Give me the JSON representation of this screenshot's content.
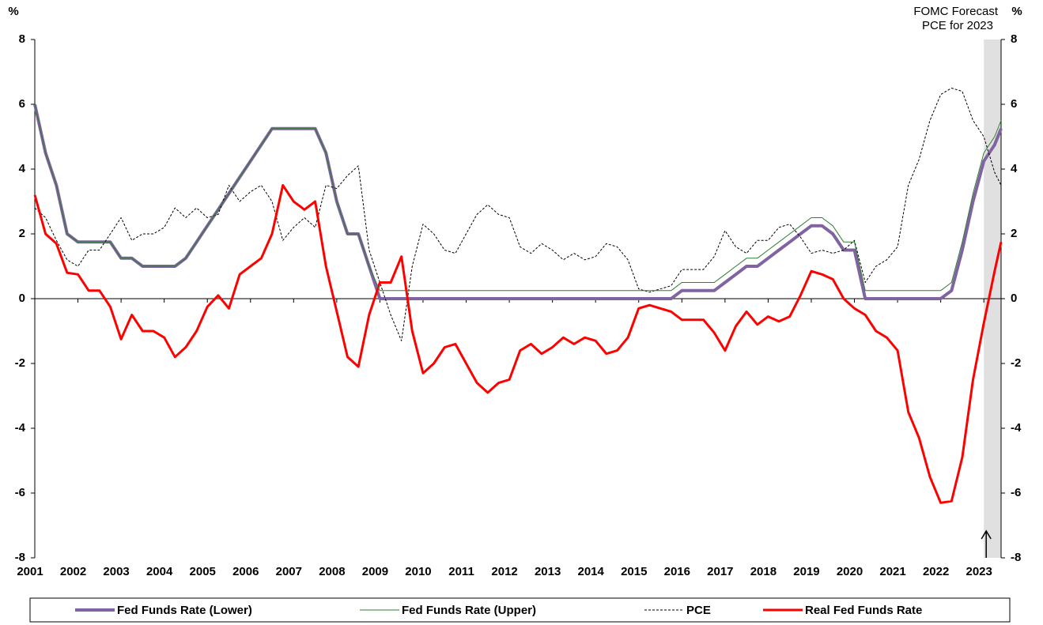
{
  "chart_data": {
    "type": "line",
    "y_label": "%",
    "y2_label": "%",
    "annotation": [
      "FOMC Forecast",
      "PCE for 2023"
    ],
    "forecast_region": [
      2023,
      2023.4
    ],
    "xlim": [
      2001,
      2023.4
    ],
    "xticks": [
      2001,
      2002,
      2003,
      2004,
      2005,
      2006,
      2007,
      2008,
      2009,
      2010,
      2011,
      2012,
      2013,
      2014,
      2015,
      2016,
      2017,
      2018,
      2019,
      2020,
      2021,
      2022,
      2023
    ],
    "ylim": [
      -8,
      8
    ],
    "yticks": [
      -8,
      -6,
      -4,
      -2,
      0,
      2,
      4,
      6,
      8
    ],
    "y2lim": [
      -8,
      8
    ],
    "y2ticks": [
      -8,
      -6,
      -4,
      -2,
      0,
      2,
      4,
      6,
      8
    ],
    "x": [
      2001,
      2001.25,
      2001.5,
      2001.75,
      2002,
      2002.25,
      2002.5,
      2002.75,
      2003,
      2003.25,
      2003.5,
      2003.75,
      2004,
      2004.25,
      2004.5,
      2004.75,
      2005,
      2005.25,
      2005.5,
      2005.75,
      2006,
      2006.25,
      2006.5,
      2006.75,
      2007,
      2007.25,
      2007.5,
      2007.75,
      2008,
      2008.25,
      2008.5,
      2008.75,
      2009,
      2009.25,
      2009.5,
      2009.75,
      2010,
      2010.25,
      2010.5,
      2010.75,
      2011,
      2011.25,
      2011.5,
      2011.75,
      2012,
      2012.25,
      2012.5,
      2012.75,
      2013,
      2013.25,
      2013.5,
      2013.75,
      2014,
      2014.25,
      2014.5,
      2014.75,
      2015,
      2015.25,
      2015.5,
      2015.75,
      2016,
      2016.25,
      2016.5,
      2016.75,
      2017,
      2017.25,
      2017.5,
      2017.75,
      2018,
      2018.25,
      2018.5,
      2018.75,
      2019,
      2019.25,
      2019.5,
      2019.75,
      2020,
      2020.25,
      2020.5,
      2020.75,
      2021,
      2021.25,
      2021.5,
      2021.75,
      2022,
      2022.25,
      2022.5,
      2022.75,
      2023,
      2023.25,
      2023.4
    ],
    "series": [
      {
        "name": "Fed Funds Rate (Lower)",
        "color": "#8064a2",
        "width": 4,
        "dashed": false,
        "values": [
          6.0,
          4.5,
          3.5,
          2.0,
          1.75,
          1.75,
          1.75,
          1.75,
          1.25,
          1.25,
          1.0,
          1.0,
          1.0,
          1.0,
          1.25,
          1.75,
          2.25,
          2.75,
          3.25,
          3.75,
          4.25,
          4.75,
          5.25,
          5.25,
          5.25,
          5.25,
          5.25,
          4.5,
          3.0,
          2.0,
          2.0,
          1.0,
          0,
          0,
          0,
          0,
          0,
          0,
          0,
          0,
          0,
          0,
          0,
          0,
          0,
          0,
          0,
          0,
          0,
          0,
          0,
          0,
          0,
          0,
          0,
          0,
          0,
          0,
          0,
          0,
          0.25,
          0.25,
          0.25,
          0.25,
          0.5,
          0.75,
          1.0,
          1.0,
          1.25,
          1.5,
          1.75,
          2.0,
          2.25,
          2.25,
          2.0,
          1.5,
          1.5,
          0,
          0,
          0,
          0,
          0,
          0,
          0,
          0,
          0.25,
          1.5,
          3.0,
          4.25,
          4.75,
          5.25
        ]
      },
      {
        "name": "Fed Funds Rate (Upper)",
        "color": "#2e7d32",
        "width": 1,
        "dashed": false,
        "values": [
          6.0,
          4.5,
          3.5,
          2.0,
          1.75,
          1.75,
          1.75,
          1.75,
          1.25,
          1.25,
          1.0,
          1.0,
          1.0,
          1.0,
          1.25,
          1.75,
          2.25,
          2.75,
          3.25,
          3.75,
          4.25,
          4.75,
          5.25,
          5.25,
          5.25,
          5.25,
          5.25,
          4.5,
          3.0,
          2.0,
          2.0,
          1.0,
          0.25,
          0.25,
          0.25,
          0.25,
          0.25,
          0.25,
          0.25,
          0.25,
          0.25,
          0.25,
          0.25,
          0.25,
          0.25,
          0.25,
          0.25,
          0.25,
          0.25,
          0.25,
          0.25,
          0.25,
          0.25,
          0.25,
          0.25,
          0.25,
          0.25,
          0.25,
          0.25,
          0.25,
          0.5,
          0.5,
          0.5,
          0.5,
          0.75,
          1.0,
          1.25,
          1.25,
          1.5,
          1.75,
          2.0,
          2.25,
          2.5,
          2.5,
          2.25,
          1.75,
          1.75,
          0.25,
          0.25,
          0.25,
          0.25,
          0.25,
          0.25,
          0.25,
          0.25,
          0.5,
          1.75,
          3.25,
          4.5,
          5.0,
          5.5
        ]
      },
      {
        "name": "PCE",
        "color": "#000000",
        "width": 1,
        "dashed": true,
        "values": [
          2.8,
          2.5,
          1.8,
          1.2,
          1.0,
          1.5,
          1.5,
          2.0,
          2.5,
          1.8,
          2.0,
          2.0,
          2.2,
          2.8,
          2.5,
          2.8,
          2.5,
          2.6,
          3.5,
          3.0,
          3.3,
          3.5,
          3.0,
          1.8,
          2.2,
          2.5,
          2.2,
          3.5,
          3.4,
          3.8,
          4.1,
          1.5,
          0.5,
          -0.5,
          -1.3,
          1.0,
          2.3,
          2.0,
          1.5,
          1.4,
          2.0,
          2.6,
          2.9,
          2.6,
          2.5,
          1.6,
          1.4,
          1.7,
          1.5,
          1.2,
          1.4,
          1.2,
          1.3,
          1.7,
          1.6,
          1.2,
          0.3,
          0.2,
          0.3,
          0.4,
          0.9,
          0.9,
          0.9,
          1.3,
          2.1,
          1.6,
          1.4,
          1.8,
          1.8,
          2.2,
          2.3,
          1.9,
          1.4,
          1.5,
          1.4,
          1.5,
          1.8,
          0.5,
          1.0,
          1.2,
          1.6,
          3.5,
          4.3,
          5.5,
          6.3,
          6.5,
          6.4,
          5.5,
          5.0,
          3.9,
          3.5
        ]
      },
      {
        "name": "Real Fed Funds Rate",
        "color": "#ff0000",
        "width": 3,
        "dashed": false,
        "values": [
          3.2,
          2.0,
          1.7,
          0.8,
          0.75,
          0.25,
          0.25,
          -0.25,
          -1.25,
          -0.5,
          -1.0,
          -1.0,
          -1.2,
          -1.8,
          -1.5,
          -1.0,
          -0.25,
          0.1,
          -0.3,
          0.75,
          1.0,
          1.25,
          2.0,
          3.5,
          3.0,
          2.75,
          3.0,
          1.0,
          -0.4,
          -1.8,
          -2.1,
          -0.5,
          0.5,
          0.5,
          1.3,
          -1.0,
          -2.3,
          -2.0,
          -1.5,
          -1.4,
          -2.0,
          -2.6,
          -2.9,
          -2.6,
          -2.5,
          -1.6,
          -1.4,
          -1.7,
          -1.5,
          -1.2,
          -1.4,
          -1.2,
          -1.3,
          -1.7,
          -1.6,
          -1.2,
          -0.3,
          -0.2,
          -0.3,
          -0.4,
          -0.65,
          -0.65,
          -0.65,
          -1.05,
          -1.6,
          -0.85,
          -0.4,
          -0.8,
          -0.55,
          -0.7,
          -0.55,
          0.1,
          0.85,
          0.75,
          0.6,
          0.0,
          -0.3,
          -0.5,
          -1.0,
          -1.2,
          -1.6,
          -3.5,
          -4.3,
          -5.5,
          -6.3,
          -6.25,
          -4.9,
          -2.5,
          -0.75,
          0.85,
          1.75
        ]
      }
    ]
  }
}
